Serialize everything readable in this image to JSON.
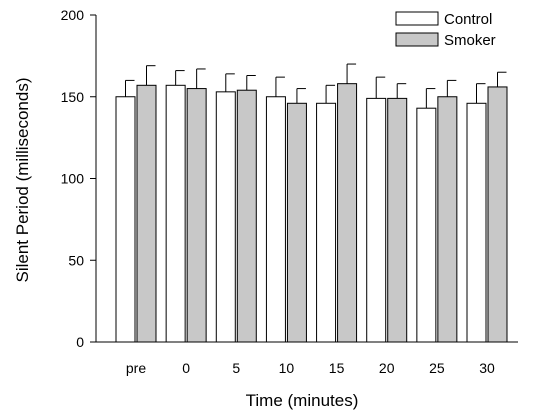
{
  "chart_data": {
    "type": "bar",
    "xlabel": "Time (minutes)",
    "ylabel": "Silent Period (milliseconds)",
    "ylim": [
      0,
      200
    ],
    "yticks": [
      0,
      50,
      100,
      150,
      200
    ],
    "categories": [
      "pre",
      "0",
      "5",
      "10",
      "15",
      "20",
      "25",
      "30"
    ],
    "series": [
      {
        "name": "Control",
        "color": "#ffffff",
        "values": [
          150,
          157,
          153,
          150,
          146,
          149,
          143,
          146
        ],
        "errors": [
          10,
          9,
          11,
          12,
          11,
          13,
          12,
          12
        ]
      },
      {
        "name": "Smoker",
        "color": "#c8c8c8",
        "values": [
          157,
          155,
          154,
          146,
          158,
          149,
          150,
          156
        ],
        "errors": [
          12,
          12,
          9,
          9,
          12,
          9,
          10,
          9
        ]
      }
    ],
    "legend": "top-right",
    "grid": false
  }
}
